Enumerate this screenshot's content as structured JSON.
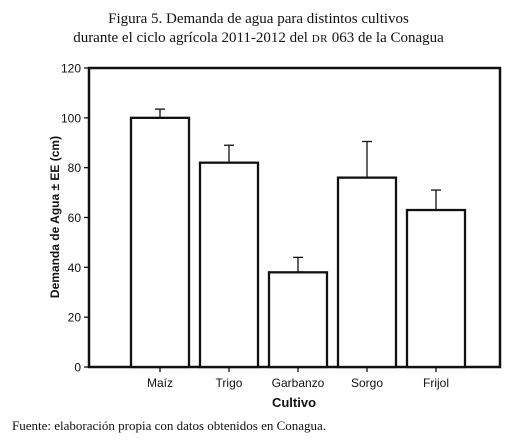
{
  "figure": {
    "title_line1": "Figura 5. Demanda de agua para distintos cultivos",
    "title_line2_pre": "durante el ciclo agrícola 2011-2012 del ",
    "title_line2_dr": "DR",
    "title_line2_post": " 063 de la Conagua",
    "source": "Fuente: elaboración propia con datos obtenidos en Conagua."
  },
  "chart_data": {
    "type": "bar",
    "title": "Figura 5. Demanda de agua para distintos cultivos durante el ciclo agrícola 2011-2012 del DR 063 de la Conagua",
    "xlabel": "Cultivo",
    "ylabel": "Demanda de Agua ± EE (cm)",
    "categories": [
      "Maíz",
      "Trigo",
      "Garbanzo",
      "Sorgo",
      "Frijol"
    ],
    "values": [
      100,
      82,
      38,
      76,
      63
    ],
    "errors": [
      3.5,
      7,
      6,
      14.5,
      8
    ],
    "ylim": [
      0,
      120
    ],
    "yticks": [
      0,
      20,
      40,
      60,
      80,
      100,
      120
    ],
    "grid": false,
    "legend": "none",
    "colors": {
      "bar_fill": "#ffffff",
      "stroke": "#111111"
    }
  }
}
